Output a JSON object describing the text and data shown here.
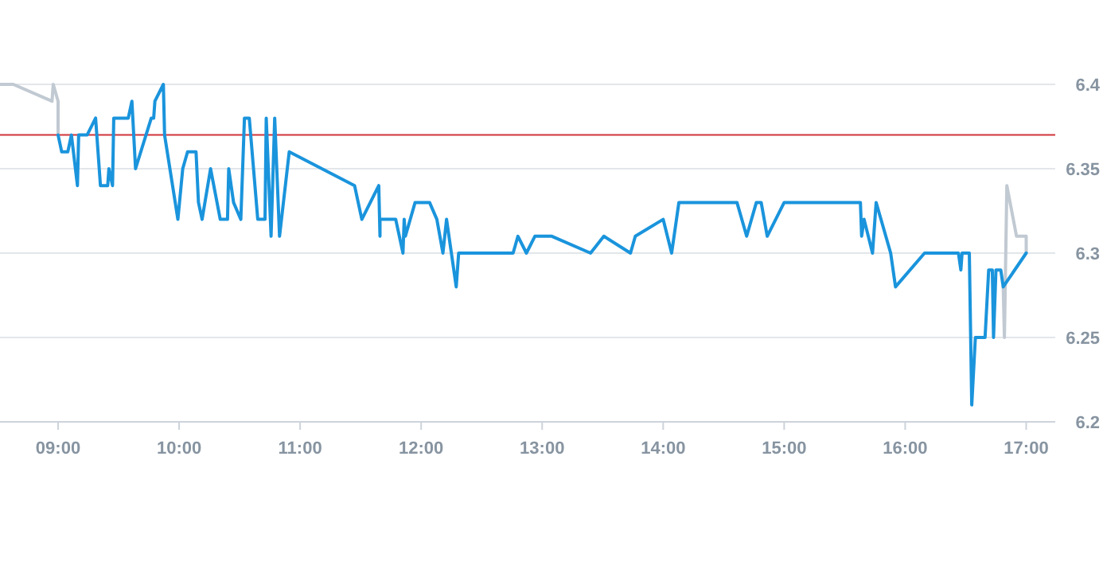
{
  "chart_data": {
    "type": "line",
    "xlim": [
      8.52,
      17.24
    ],
    "ylim": [
      6.2,
      6.4
    ],
    "xticks": [
      {
        "value": 9,
        "label": "09:00"
      },
      {
        "value": 10,
        "label": "10:00"
      },
      {
        "value": 11,
        "label": "11:00"
      },
      {
        "value": 12,
        "label": "12:00"
      },
      {
        "value": 13,
        "label": "13:00"
      },
      {
        "value": 14,
        "label": "14:00"
      },
      {
        "value": 15,
        "label": "15:00"
      },
      {
        "value": 16,
        "label": "16:00"
      },
      {
        "value": 17,
        "label": "17:00"
      }
    ],
    "yticks": [
      6.2,
      6.25,
      6.3,
      6.35,
      6.4
    ],
    "grid": "y",
    "marker": "none",
    "line_style": "solid",
    "ref_lines": [
      {
        "axis": "y",
        "value": 6.37,
        "color": "#d0343a"
      }
    ],
    "series": [
      {
        "color": "#c1c9d2",
        "x": [
          8.52,
          8.63,
          8.95,
          8.96,
          9.0,
          9.0
        ],
        "values": [
          6.4,
          6.4,
          6.39,
          6.4,
          6.39,
          6.37
        ]
      },
      {
        "color": "#c1c9d2",
        "x": [
          16.81,
          16.82,
          16.84,
          16.92,
          17.0,
          17.0
        ],
        "values": [
          6.28,
          6.25,
          6.34,
          6.31,
          6.31,
          6.3
        ]
      },
      {
        "color": "#1a94dc",
        "x": [
          9.0,
          9.03,
          9.08,
          9.11,
          9.16,
          9.17,
          9.24,
          9.31,
          9.35,
          9.41,
          9.42,
          9.45,
          9.46,
          9.58,
          9.61,
          9.64,
          9.77,
          9.79,
          9.8,
          9.87,
          9.88,
          9.99,
          10.03,
          10.07,
          10.14,
          10.16,
          10.19,
          10.26,
          10.34,
          10.4,
          10.41,
          10.45,
          10.51,
          10.54,
          10.58,
          10.65,
          10.71,
          10.72,
          10.76,
          10.79,
          10.83,
          10.91,
          11.45,
          11.51,
          11.65,
          11.66,
          11.66,
          11.79,
          11.85,
          11.86,
          11.87,
          11.95,
          12.07,
          12.13,
          12.18,
          12.21,
          12.25,
          12.29,
          12.31,
          12.76,
          12.8,
          12.87,
          12.94,
          13.08,
          13.4,
          13.51,
          13.73,
          13.77,
          14.0,
          14.07,
          14.13,
          14.61,
          14.69,
          14.77,
          14.81,
          14.86,
          15.0,
          15.63,
          15.64,
          15.66,
          15.73,
          15.76,
          15.88,
          15.92,
          16.16,
          16.44,
          16.46,
          16.47,
          16.53,
          16.55,
          16.58,
          16.66,
          16.69,
          16.72,
          16.73,
          16.75,
          16.79,
          16.81,
          17.0
        ],
        "values": [
          6.37,
          6.36,
          6.36,
          6.37,
          6.34,
          6.37,
          6.37,
          6.38,
          6.34,
          6.34,
          6.35,
          6.34,
          6.38,
          6.38,
          6.39,
          6.35,
          6.38,
          6.38,
          6.39,
          6.4,
          6.37,
          6.32,
          6.35,
          6.36,
          6.36,
          6.33,
          6.32,
          6.35,
          6.32,
          6.32,
          6.35,
          6.33,
          6.32,
          6.38,
          6.38,
          6.32,
          6.32,
          6.38,
          6.31,
          6.38,
          6.31,
          6.36,
          6.34,
          6.32,
          6.34,
          6.31,
          6.32,
          6.32,
          6.3,
          6.32,
          6.31,
          6.33,
          6.33,
          6.32,
          6.3,
          6.32,
          6.3,
          6.28,
          6.3,
          6.3,
          6.31,
          6.3,
          6.31,
          6.31,
          6.3,
          6.31,
          6.3,
          6.31,
          6.32,
          6.3,
          6.33,
          6.33,
          6.31,
          6.33,
          6.33,
          6.31,
          6.33,
          6.33,
          6.31,
          6.32,
          6.3,
          6.33,
          6.3,
          6.28,
          6.3,
          6.3,
          6.29,
          6.3,
          6.3,
          6.21,
          6.25,
          6.25,
          6.29,
          6.29,
          6.25,
          6.29,
          6.29,
          6.28,
          6.3
        ]
      }
    ]
  }
}
